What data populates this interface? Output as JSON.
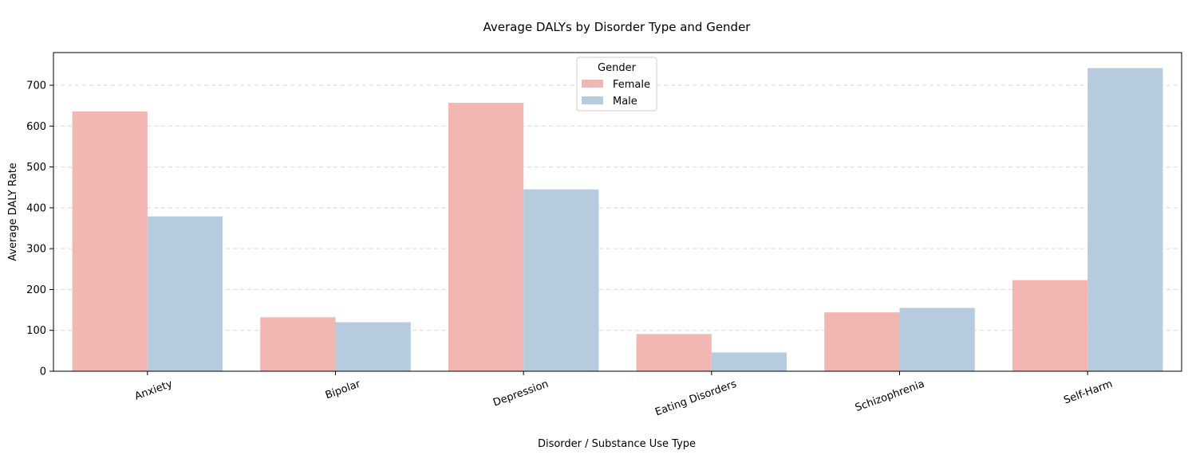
{
  "chart_data": {
    "type": "bar",
    "title": "Average DALYs by Disorder Type and Gender",
    "xlabel": "Disorder / Substance Use Type",
    "ylabel": "Average DALY Rate",
    "categories": [
      "Anxiety",
      "Bipolar",
      "Depression",
      "Eating Disorders",
      "Schizophrenia",
      "Self-Harm"
    ],
    "series": [
      {
        "name": "Female",
        "color": "#f2b6b3",
        "values": [
          636,
          132,
          657,
          91,
          144,
          223
        ]
      },
      {
        "name": "Male",
        "color": "#b6cbde",
        "values": [
          379,
          120,
          445,
          46,
          155,
          742
        ]
      }
    ],
    "ylim": [
      0,
      780
    ],
    "yticks": [
      0,
      100,
      200,
      300,
      400,
      500,
      600,
      700
    ],
    "grid": true,
    "legend": {
      "title": "Gender",
      "placement": "top-center"
    },
    "xtick_rotation_deg": -20
  }
}
